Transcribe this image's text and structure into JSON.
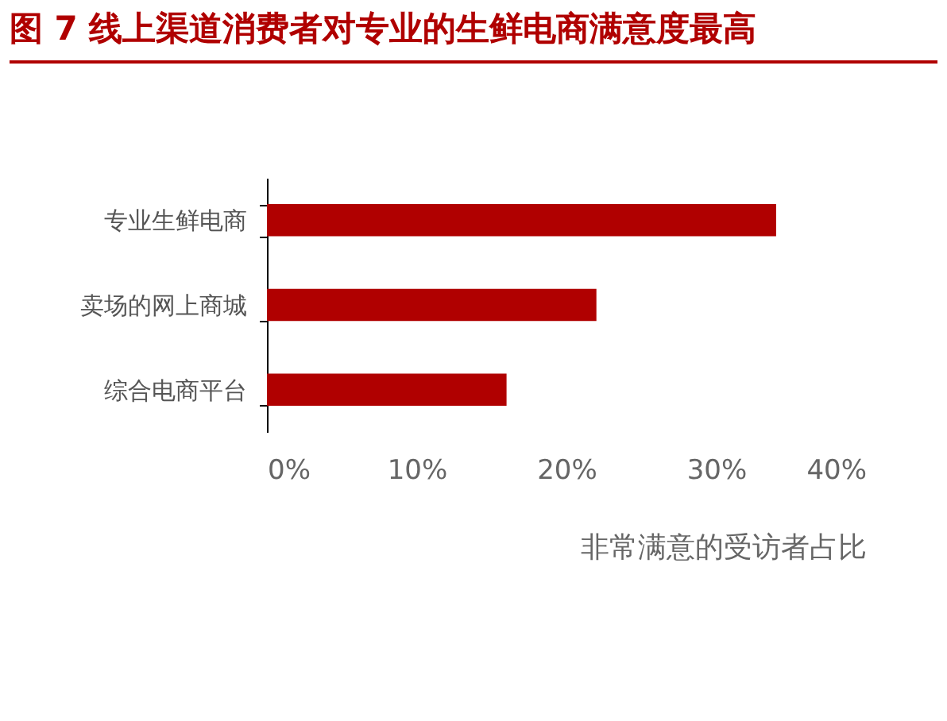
{
  "chart_data": {
    "type": "bar",
    "orientation": "horizontal",
    "title": "图 7 线上渠道消费者对专业的生鲜电商满意度最高",
    "xlabel": "非常满意的受访者占比",
    "categories": [
      "专业生鲜电商",
      "卖场的网上商城",
      "综合电商平台"
    ],
    "series": [
      {
        "color": "#b00000",
        "values": [
          34,
          22,
          16
        ]
      }
    ],
    "xlim": [
      0,
      40
    ],
    "xticks": [
      {
        "value": 0,
        "label": "0%"
      },
      {
        "value": 10,
        "label": "10%"
      },
      {
        "value": 20,
        "label": "20%"
      },
      {
        "value": 30,
        "label": "30%"
      },
      {
        "value": 40,
        "label": "40%"
      }
    ],
    "grid": false,
    "legend": false
  }
}
